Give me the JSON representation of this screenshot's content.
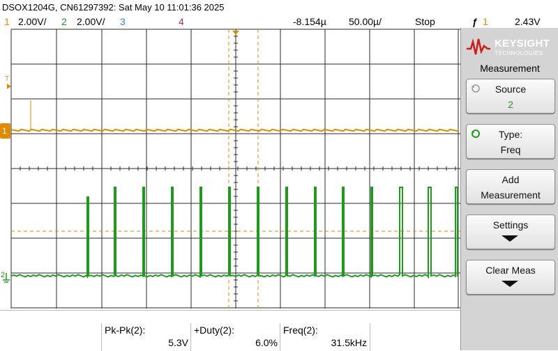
{
  "header": {
    "title": "DSOX1204G, CN61297392: Sat May 10 11:01:36 2025",
    "ch1_num": "1",
    "ch1_scale": "2.00V/",
    "ch2_num": "2",
    "ch2_scale": "2.00V/",
    "ch3_num": "3",
    "ch4_num": "4",
    "time_delay": "-8.154µ",
    "time_scale": "50.00µ/",
    "run_state": "Stop",
    "trigger_symbol": "ƒ",
    "trigger_source": "1",
    "trigger_level": "2.43V"
  },
  "markers": {
    "trigger_marker": "T",
    "ch1_marker": "1",
    "ch2_marker": "2"
  },
  "panel": {
    "brand": "KEYSIGHT",
    "brand_sub": "TECHNOLOGIES",
    "menu_title": "Measurement",
    "source_label": "Source",
    "source_value": "2",
    "type_label": "Type:",
    "type_value": "Freq",
    "add_label_1": "Add",
    "add_label_2": "Measurement",
    "settings_label": "Settings",
    "clear_label": "Clear Meas"
  },
  "measurements": [
    {
      "label": "Pk-Pk(2):",
      "value": "5.3V"
    },
    {
      "label": "+Duty(2):",
      "value": "6.0%"
    },
    {
      "label": "Freq(2):",
      "value": "31.5kHz"
    }
  ],
  "colors": {
    "ch1": "#e08a00",
    "ch2": "#1f9a1f",
    "ch3": "#3f7fbf",
    "ch4": "#b0306f"
  }
}
